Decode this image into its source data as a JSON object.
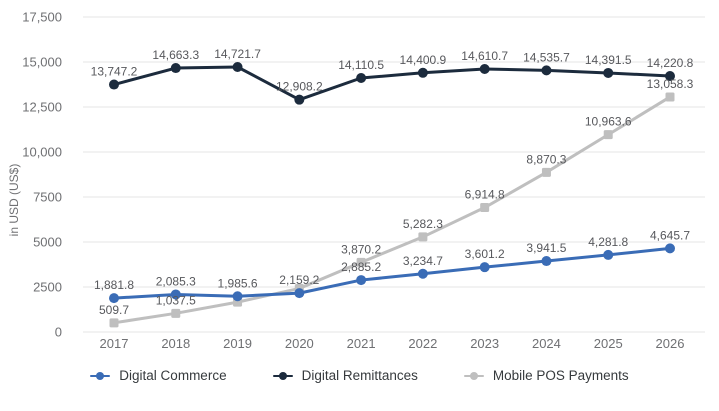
{
  "chart_data": {
    "type": "line",
    "x": [
      2017,
      2018,
      2019,
      2020,
      2021,
      2022,
      2023,
      2024,
      2025,
      2026
    ],
    "series": [
      {
        "name": "Digital Commerce",
        "color": "#3a6cb6",
        "marker": "circle",
        "values": [
          1881.8,
          2085.3,
          1985.6,
          2159.2,
          2885.2,
          3234.7,
          3601.2,
          3941.5,
          4281.8,
          4645.7
        ],
        "labels": [
          "1,881.8",
          "2,085.3",
          "1,985.6",
          "2,159.2",
          "2,885.2",
          "3,234.7",
          "3,601.2",
          "3,941.5",
          "4,281.8",
          "4,645.7"
        ]
      },
      {
        "name": "Digital Remittances",
        "color": "#1c2b3d",
        "marker": "circle",
        "values": [
          13747.2,
          14663.3,
          14721.7,
          12908.2,
          14110.5,
          14400.9,
          14610.7,
          14535.7,
          14391.5,
          14220.8
        ],
        "labels": [
          "13,747.2",
          "14,663.3",
          "14,721.7",
          "12,908.2",
          "14,110.5",
          "14,400.9",
          "14,610.7",
          "14,535.7",
          "14,391.5",
          "14,220.8"
        ]
      },
      {
        "name": "Mobile POS Payments",
        "color": "#bfbfbf",
        "marker": "square",
        "values": [
          509.7,
          1037.5,
          1660,
          2420,
          3870.2,
          5282.3,
          6914.8,
          8870.3,
          10963.6,
          13058.3
        ],
        "labels": [
          "509.7",
          "1,037.5",
          null,
          null,
          "3,870.2",
          "5,282.3",
          "6,914.8",
          "8,870.3",
          "10,963.6",
          "13,058.3"
        ]
      }
    ],
    "title": "",
    "xlabel": "",
    "ylabel": "in USD (US$)",
    "ylim": [
      0,
      17500
    ],
    "yticks": {
      "values": [
        0,
        2500,
        5000,
        7500,
        10000,
        12500,
        15000,
        17500
      ],
      "labels": [
        "0",
        "2500",
        "5000",
        "7500",
        "10,000",
        "12,500",
        "15,000",
        "17,500"
      ]
    },
    "grid": "horizontal",
    "legend_position": "bottom",
    "colors": {
      "background": "#ffffff",
      "gridline": "#e6e6e6",
      "axis_text": "#6f7073",
      "data_label": "#57585c",
      "legend_text": "#363a3d"
    }
  }
}
